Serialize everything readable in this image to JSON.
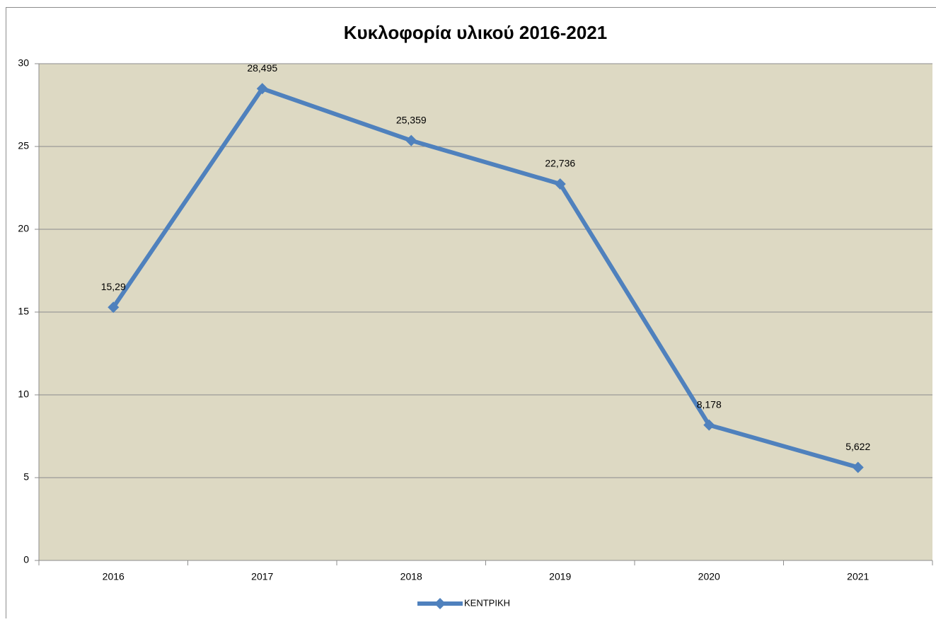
{
  "chart_data": {
    "type": "line",
    "title": "Κυκλοφορία υλικού 2016-2021",
    "categories": [
      "2016",
      "2017",
      "2018",
      "2019",
      "2020",
      "2021"
    ],
    "series": [
      {
        "name": "ΚΕΝΤΡΙΚΗ",
        "color": "#4f81bd",
        "values": [
          15.29,
          28.495,
          25.359,
          22.736,
          8.178,
          5.622
        ],
        "value_labels": [
          "15,29",
          "28,495",
          "25,359",
          "22,736",
          "8,178",
          "5,622"
        ]
      }
    ],
    "ylim": [
      0,
      30
    ],
    "yticks": [
      0,
      5,
      10,
      15,
      20,
      25,
      30
    ],
    "grid": true,
    "legend": "bottom"
  }
}
